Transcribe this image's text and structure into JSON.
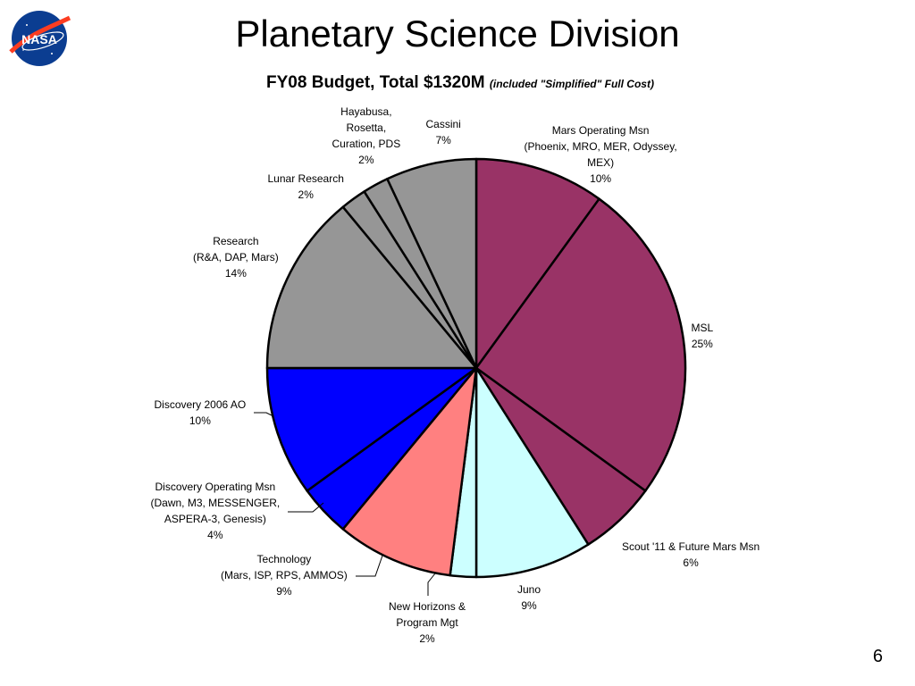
{
  "slide": {
    "title": "Planetary Science Division",
    "subtitle_main": "FY08 Budget, Total $1320M",
    "subtitle_note": "(included \"Simplified\" Full Cost)",
    "page_number": "6",
    "logo_text": "NASA"
  },
  "chart_data": {
    "type": "pie",
    "title": "FY08 Budget, Total $1320M",
    "start_angle": "12 o'clock",
    "direction": "clockwise",
    "slices": [
      {
        "label_lines": [
          "Mars Operating Msn",
          "(Phoenix, MRO, MER, Odyssey,",
          "MEX)"
        ],
        "pct_text": "10%",
        "value": 10,
        "color": "#993366"
      },
      {
        "label_lines": [
          "MSL"
        ],
        "pct_text": "25%",
        "value": 25,
        "color": "#993366"
      },
      {
        "label_lines": [
          "Scout '11 & Future Mars Msn"
        ],
        "pct_text": "6%",
        "value": 6,
        "color": "#993366"
      },
      {
        "label_lines": [
          "Juno"
        ],
        "pct_text": "9%",
        "value": 9,
        "color": "#CCFFFF"
      },
      {
        "label_lines": [
          "New Horizons &",
          "Program Mgt"
        ],
        "pct_text": "2%",
        "value": 2,
        "color": "#CCFFFF"
      },
      {
        "label_lines": [
          "Technology",
          "(Mars, ISP, RPS, AMMOS)"
        ],
        "pct_text": "9%",
        "value": 9,
        "color": "#FF8080"
      },
      {
        "label_lines": [
          "Discovery Operating Msn",
          "(Dawn, M3, MESSENGER,",
          "ASPERA-3, Genesis)"
        ],
        "pct_text": "4%",
        "value": 4,
        "color": "#0000FF"
      },
      {
        "label_lines": [
          "Discovery  2006 AO"
        ],
        "pct_text": "10%",
        "value": 10,
        "color": "#0000FF"
      },
      {
        "label_lines": [
          "Research",
          "(R&A, DAP, Mars)"
        ],
        "pct_text": "14%",
        "value": 14,
        "color": "#969696"
      },
      {
        "label_lines": [
          "Lunar Research"
        ],
        "pct_text": "2%",
        "value": 2,
        "color": "#969696"
      },
      {
        "label_lines": [
          "Hayabusa,",
          "Rosetta,",
          "Curation, PDS"
        ],
        "pct_text": "2%",
        "value": 2,
        "color": "#969696"
      },
      {
        "label_lines": [
          "Cassini"
        ],
        "pct_text": "7%",
        "value": 7,
        "color": "#969696"
      }
    ]
  }
}
